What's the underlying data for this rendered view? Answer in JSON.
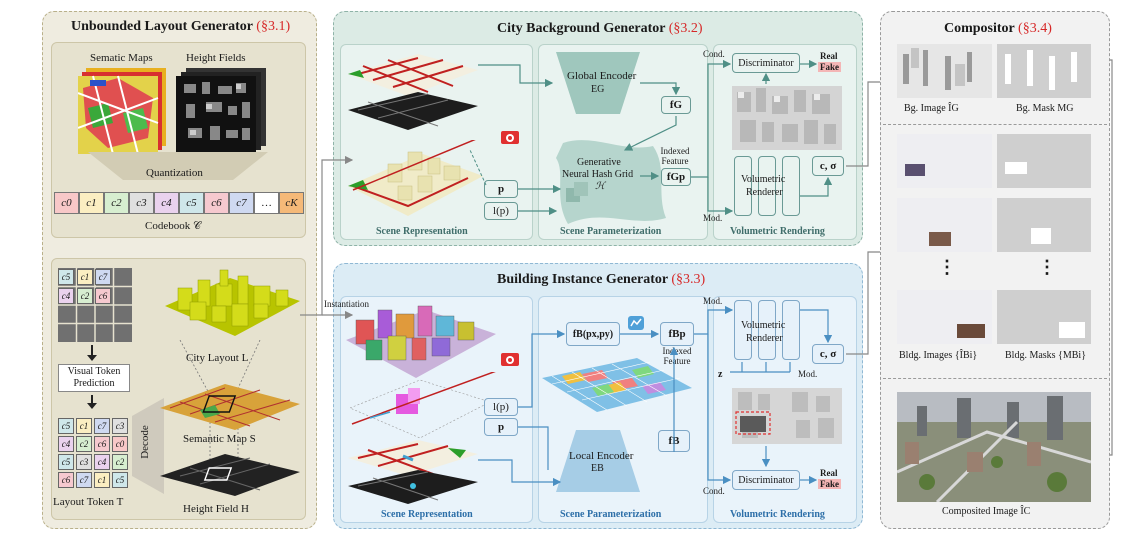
{
  "layout_gen": {
    "title": "Unbounded Layout Generator",
    "sec": "(§3.1)",
    "semantic_maps": "Sematic Maps",
    "height_fields": "Height Fields",
    "quantization": "Quantization",
    "codebook_tokens": [
      "c0",
      "c1",
      "c2",
      "c3",
      "c4",
      "c5",
      "c6",
      "c7",
      "…",
      "cK"
    ],
    "codebook_label": "Codebook 𝒞",
    "token_grid_top": [
      [
        "c5",
        "c1",
        "c7"
      ],
      [
        "c4",
        "c2",
        "c6"
      ]
    ],
    "visual_token_prediction": "Visual Token Prediction",
    "token_grid_bottom": [
      [
        "c5",
        "c1",
        "c7",
        "c3"
      ],
      [
        "c4",
        "c2",
        "c6",
        "c0"
      ],
      [
        "c5",
        "c3",
        "c4",
        "c2"
      ],
      [
        "c6",
        "c7",
        "c1",
        "c5"
      ]
    ],
    "layout_token": "Layout Token T",
    "decode": "Decode",
    "city_layout": "City Layout L",
    "semantic_map_s": "Semantic Map S",
    "height_field_h": "Height Field H"
  },
  "city_bg": {
    "title": "City Background Generator",
    "sec": "(§3.2)",
    "global_encoder": "Global Encoder",
    "global_encoder_sub": "EG",
    "fG": "fG",
    "indexed_feature": "Indexed Feature",
    "fGp": "fGp",
    "hash_grid_line1": "Generative",
    "hash_grid_line2": "Neural Hash Grid",
    "hash_grid_line3": "ℋ",
    "p": "p",
    "lp": "l(p)",
    "cond": "Cond.",
    "mod": "Mod.",
    "discriminator": "Discriminator",
    "real": "Real",
    "fake": "Fake",
    "volumetric_renderer_1": "Volumetric",
    "volumetric_renderer_2": "Renderer",
    "c_sigma": "c, σ",
    "scene_representation": "Scene Representation",
    "scene_parameterization": "Scene Parameterization",
    "volumetric_rendering": "Volumetric Rendering"
  },
  "instantiation": "Instantiation",
  "building": {
    "title": "Building Instance Generator",
    "sec": "(§3.3)",
    "fB_pxpy": "fB(px,py)",
    "fBp": "fBp",
    "indexed_feature": "Indexed Feature",
    "lp": "l(p)",
    "p": "p",
    "local_encoder": "Local Encoder",
    "local_encoder_sub": "EB",
    "fB": "fB",
    "mod": "Mod.",
    "cond": "Cond.",
    "z": "z",
    "volumetric_renderer_1": "Volumetric",
    "volumetric_renderer_2": "Renderer",
    "c_sigma": "c, σ",
    "discriminator": "Discriminator",
    "real": "Real",
    "fake": "Fake",
    "scene_representation": "Scene Representation",
    "scene_parameterization": "Scene Parameterization",
    "volumetric_rendering": "Volumetric Rendering"
  },
  "compositor": {
    "title": "Compositor",
    "sec": "(§3.4)",
    "bg_image": "Bg. Image ÎG",
    "bg_mask": "Bg. Mask MG",
    "bldg_images": "Bldg. Images {ÎBi}",
    "bldg_masks": "Bldg. Masks {MBi}",
    "dots": "⋮",
    "composited": "Composited Image ÎC"
  },
  "colors": {
    "layout_bg": "#efece0",
    "layout_border": "#b9b08a",
    "city_bg": "#dcebe5",
    "city_border": "#8fb3a8",
    "building_bg": "#dcecf5",
    "building_border": "#8fb8d4",
    "compositor_bg": "#f2f2f2",
    "accent_red": "#d62828"
  }
}
